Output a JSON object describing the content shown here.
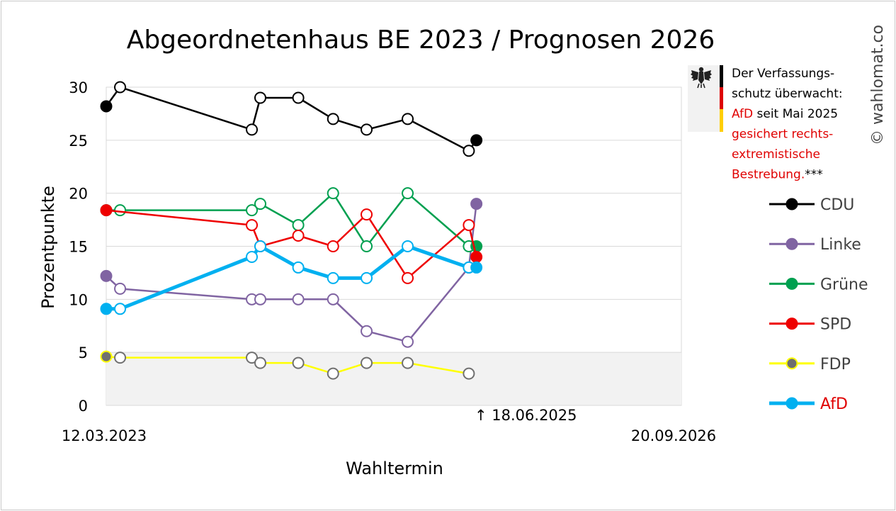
{
  "chart_data": {
    "type": "line",
    "title": "Abgeordnetenhaus BE 2023 / Prognosen 2026",
    "xlabel": "Wahltermin",
    "ylabel": "Prozentpunkte",
    "ylim": [
      0,
      30
    ],
    "yticks": [
      "0",
      "5",
      "10",
      "15",
      "20",
      "25",
      "30"
    ],
    "xlim": [
      "2023-03-12",
      "2026-09-20"
    ],
    "x_tick_labels": [
      "12.03.2023",
      "20.09.2026"
    ],
    "marker_label": "↑ 18.06.2025",
    "marker_date": "2025-06-18",
    "threshold": 5,
    "grid": true,
    "legend_position": "right",
    "series": [
      {
        "name": "CDU",
        "color": "#000000",
        "line_width": 2.5,
        "result": {
          "x": "2023-03-12",
          "y": 28.2
        },
        "current": {
          "x": "2025-06-18",
          "y": 25
        },
        "polls": [
          {
            "x": "2023-04-12",
            "y": 30
          },
          {
            "x": "2024-02-01",
            "y": 26
          },
          {
            "x": "2024-02-20",
            "y": 29
          },
          {
            "x": "2024-05-15",
            "y": 29
          },
          {
            "x": "2024-08-01",
            "y": 27
          },
          {
            "x": "2024-10-15",
            "y": 26
          },
          {
            "x": "2025-01-15",
            "y": 27
          },
          {
            "x": "2025-06-01",
            "y": 24
          }
        ]
      },
      {
        "name": "Linke",
        "color": "#8064a2",
        "line_width": 2.5,
        "result": {
          "x": "2023-03-12",
          "y": 12.2
        },
        "current": {
          "x": "2025-06-18",
          "y": 19
        },
        "polls": [
          {
            "x": "2023-04-12",
            "y": 11
          },
          {
            "x": "2024-02-01",
            "y": 10
          },
          {
            "x": "2024-02-20",
            "y": 10
          },
          {
            "x": "2024-05-15",
            "y": 10
          },
          {
            "x": "2024-08-01",
            "y": 10
          },
          {
            "x": "2024-10-15",
            "y": 7
          },
          {
            "x": "2025-01-15",
            "y": 6
          },
          {
            "x": "2025-06-01",
            "y": 13
          }
        ]
      },
      {
        "name": "Grüne",
        "color": "#00a050",
        "line_width": 2.5,
        "result": {
          "x": "2023-03-12",
          "y": 18.4
        },
        "current": {
          "x": "2025-06-18",
          "y": 15
        },
        "polls": [
          {
            "x": "2023-04-12",
            "y": 18.4
          },
          {
            "x": "2024-02-01",
            "y": 18.4
          },
          {
            "x": "2024-02-20",
            "y": 19
          },
          {
            "x": "2024-05-15",
            "y": 17
          },
          {
            "x": "2024-08-01",
            "y": 20
          },
          {
            "x": "2024-10-15",
            "y": 15
          },
          {
            "x": "2025-01-15",
            "y": 20
          },
          {
            "x": "2025-06-01",
            "y": 15
          }
        ]
      },
      {
        "name": "SPD",
        "color": "#ee0000",
        "line_width": 2.5,
        "result": {
          "x": "2023-03-12",
          "y": 18.4
        },
        "current": {
          "x": "2025-06-18",
          "y": 14
        },
        "polls": [
          {
            "x": "2024-02-01",
            "y": 17
          },
          {
            "x": "2024-02-20",
            "y": 15
          },
          {
            "x": "2024-05-15",
            "y": 16
          },
          {
            "x": "2024-08-01",
            "y": 15
          },
          {
            "x": "2024-10-15",
            "y": 18
          },
          {
            "x": "2025-01-15",
            "y": 12
          },
          {
            "x": "2025-06-01",
            "y": 17
          }
        ]
      },
      {
        "name": "FDP",
        "color": "#ffff00",
        "line_width": 2.5,
        "marker_fill": "#707070",
        "result": {
          "x": "2023-03-12",
          "y": 4.6
        },
        "polls": [
          {
            "x": "2023-04-12",
            "y": 4.5
          },
          {
            "x": "2024-02-01",
            "y": 4.5
          },
          {
            "x": "2024-02-20",
            "y": 4
          },
          {
            "x": "2024-05-15",
            "y": 4
          },
          {
            "x": "2024-08-01",
            "y": 3
          },
          {
            "x": "2024-10-15",
            "y": 4
          },
          {
            "x": "2025-01-15",
            "y": 4
          },
          {
            "x": "2025-06-01",
            "y": 3
          }
        ]
      },
      {
        "name": "AfD",
        "color": "#00b0f0",
        "line_width": 5,
        "label_color": "#e00000",
        "result": {
          "x": "2023-03-12",
          "y": 9.1
        },
        "current": {
          "x": "2025-06-18",
          "y": 13
        },
        "polls": [
          {
            "x": "2023-04-12",
            "y": 9.1
          },
          {
            "x": "2024-02-01",
            "y": 14
          },
          {
            "x": "2024-02-20",
            "y": 15
          },
          {
            "x": "2024-05-15",
            "y": 13
          },
          {
            "x": "2024-08-01",
            "y": 12
          },
          {
            "x": "2024-10-15",
            "y": 12
          },
          {
            "x": "2025-01-15",
            "y": 15
          },
          {
            "x": "2025-06-01",
            "y": 13
          }
        ]
      }
    ],
    "annotation": {
      "lines": [
        {
          "parts": [
            {
              "text": "Der Verfassungs-",
              "red": false
            }
          ]
        },
        {
          "parts": [
            {
              "text": "schutz überwacht:",
              "red": false
            }
          ]
        },
        {
          "parts": [
            {
              "text": "AfD",
              "red": true
            },
            {
              "text": " seit Mai 2025",
              "red": false
            }
          ]
        },
        {
          "parts": [
            {
              "text": "gesichert rechts-",
              "red": true
            }
          ]
        },
        {
          "parts": [
            {
              "text": "extremistische",
              "red": true
            }
          ]
        },
        {
          "parts": [
            {
              "text": "Bestrebung.",
              "red": true
            },
            {
              "text": "***",
              "red": false
            }
          ]
        }
      ]
    },
    "copyright": "© wahlomat.co",
    "emblem_icon": "federal-eagle-icon",
    "flag_colors": [
      "#000000",
      "#dd0000",
      "#ffce00"
    ],
    "threshold_band_color": "#f2f2f2",
    "grid_color": "#d9d9d9"
  }
}
